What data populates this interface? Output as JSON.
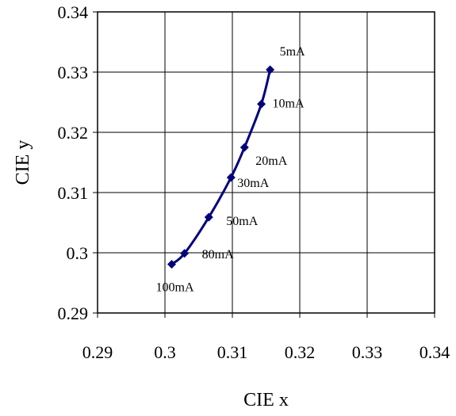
{
  "chart_data": {
    "type": "scatter",
    "title": "",
    "xlabel": "CIE x",
    "ylabel": "CIE y",
    "xlim": [
      0.29,
      0.34
    ],
    "ylim": [
      0.29,
      0.34
    ],
    "x_ticks": [
      "0.29",
      "0.3",
      "0.31",
      "0.32",
      "0.33",
      "0.34"
    ],
    "y_ticks": [
      "0.29",
      "0.3",
      "0.31",
      "0.32",
      "0.33",
      "0.34"
    ],
    "grid": true,
    "legend": "none",
    "line_style": "smooth line with diamond markers",
    "series": [
      {
        "points": [
          {
            "x": 0.3156,
            "y": 0.3304,
            "label": "5mA"
          },
          {
            "x": 0.3143,
            "y": 0.3247,
            "label": "10mA"
          },
          {
            "x": 0.3118,
            "y": 0.3175,
            "label": "20mA"
          },
          {
            "x": 0.3098,
            "y": 0.3125,
            "label": "30mA"
          },
          {
            "x": 0.3065,
            "y": 0.3059,
            "label": "50mA"
          },
          {
            "x": 0.3029,
            "y": 0.2999,
            "label": "80mA"
          },
          {
            "x": 0.301,
            "y": 0.2981,
            "label": "100mA"
          }
        ]
      }
    ],
    "colors": {
      "series": "#000080",
      "grid": "#000000",
      "axis": "#000000"
    }
  }
}
